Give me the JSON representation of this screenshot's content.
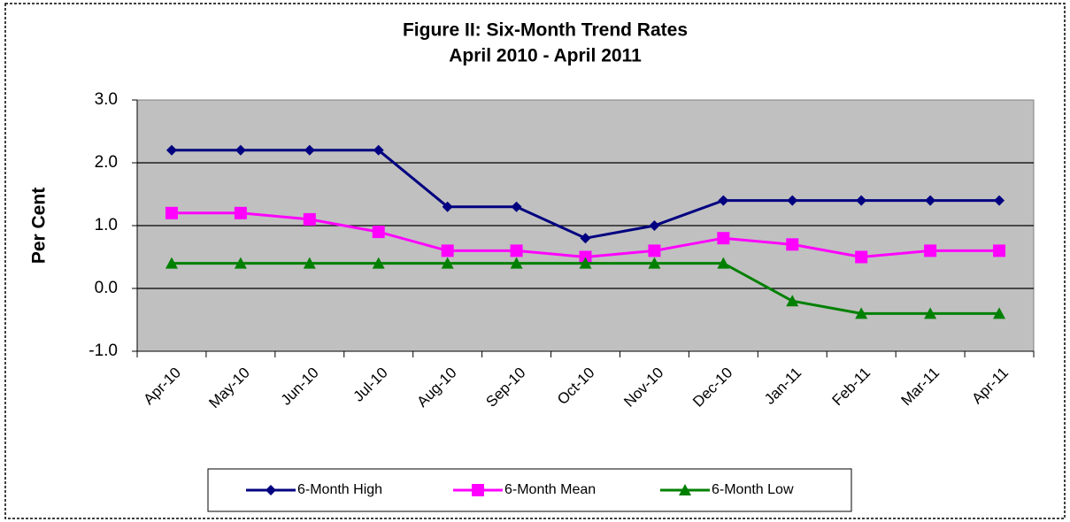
{
  "chart_data": {
    "type": "line",
    "title": "Figure II: Six-Month Trend Rates",
    "subtitle": "April  2010 - April 2011",
    "y_label": "Per Cent",
    "categories": [
      "Apr-10",
      "May-10",
      "Jun-10",
      "Jul-10",
      "Aug-10",
      "Sep-10",
      "Oct-10",
      "Nov-10",
      "Dec-10",
      "Jan-11",
      "Feb-11",
      "Mar-11",
      "Apr-11"
    ],
    "series": [
      {
        "name": "6-Month High",
        "color": "#000080",
        "marker": "diamond",
        "values": [
          2.2,
          2.2,
          2.2,
          2.2,
          1.3,
          1.3,
          0.8,
          1.0,
          1.4,
          1.4,
          1.4,
          1.4,
          1.4
        ]
      },
      {
        "name": "6-Month Mean",
        "color": "#ff00ff",
        "marker": "square",
        "values": [
          1.2,
          1.2,
          1.1,
          0.9,
          0.6,
          0.6,
          0.5,
          0.6,
          0.8,
          0.7,
          0.5,
          0.6,
          0.6
        ]
      },
      {
        "name": "6-Month Low",
        "color": "#008000",
        "marker": "triangle",
        "values": [
          0.4,
          0.4,
          0.4,
          0.4,
          0.4,
          0.4,
          0.4,
          0.4,
          0.4,
          -0.2,
          -0.4,
          -0.4,
          -0.4
        ]
      }
    ],
    "ylim": [
      -1,
      3
    ],
    "yticks": [
      {
        "value": -1,
        "label": "-1.0"
      },
      {
        "value": 0,
        "label": "0.0"
      },
      {
        "value": 1,
        "label": "1.0"
      },
      {
        "value": 2,
        "label": "2.0"
      },
      {
        "value": 3,
        "label": "3.0"
      }
    ],
    "grid": true,
    "legend": "bottom"
  }
}
